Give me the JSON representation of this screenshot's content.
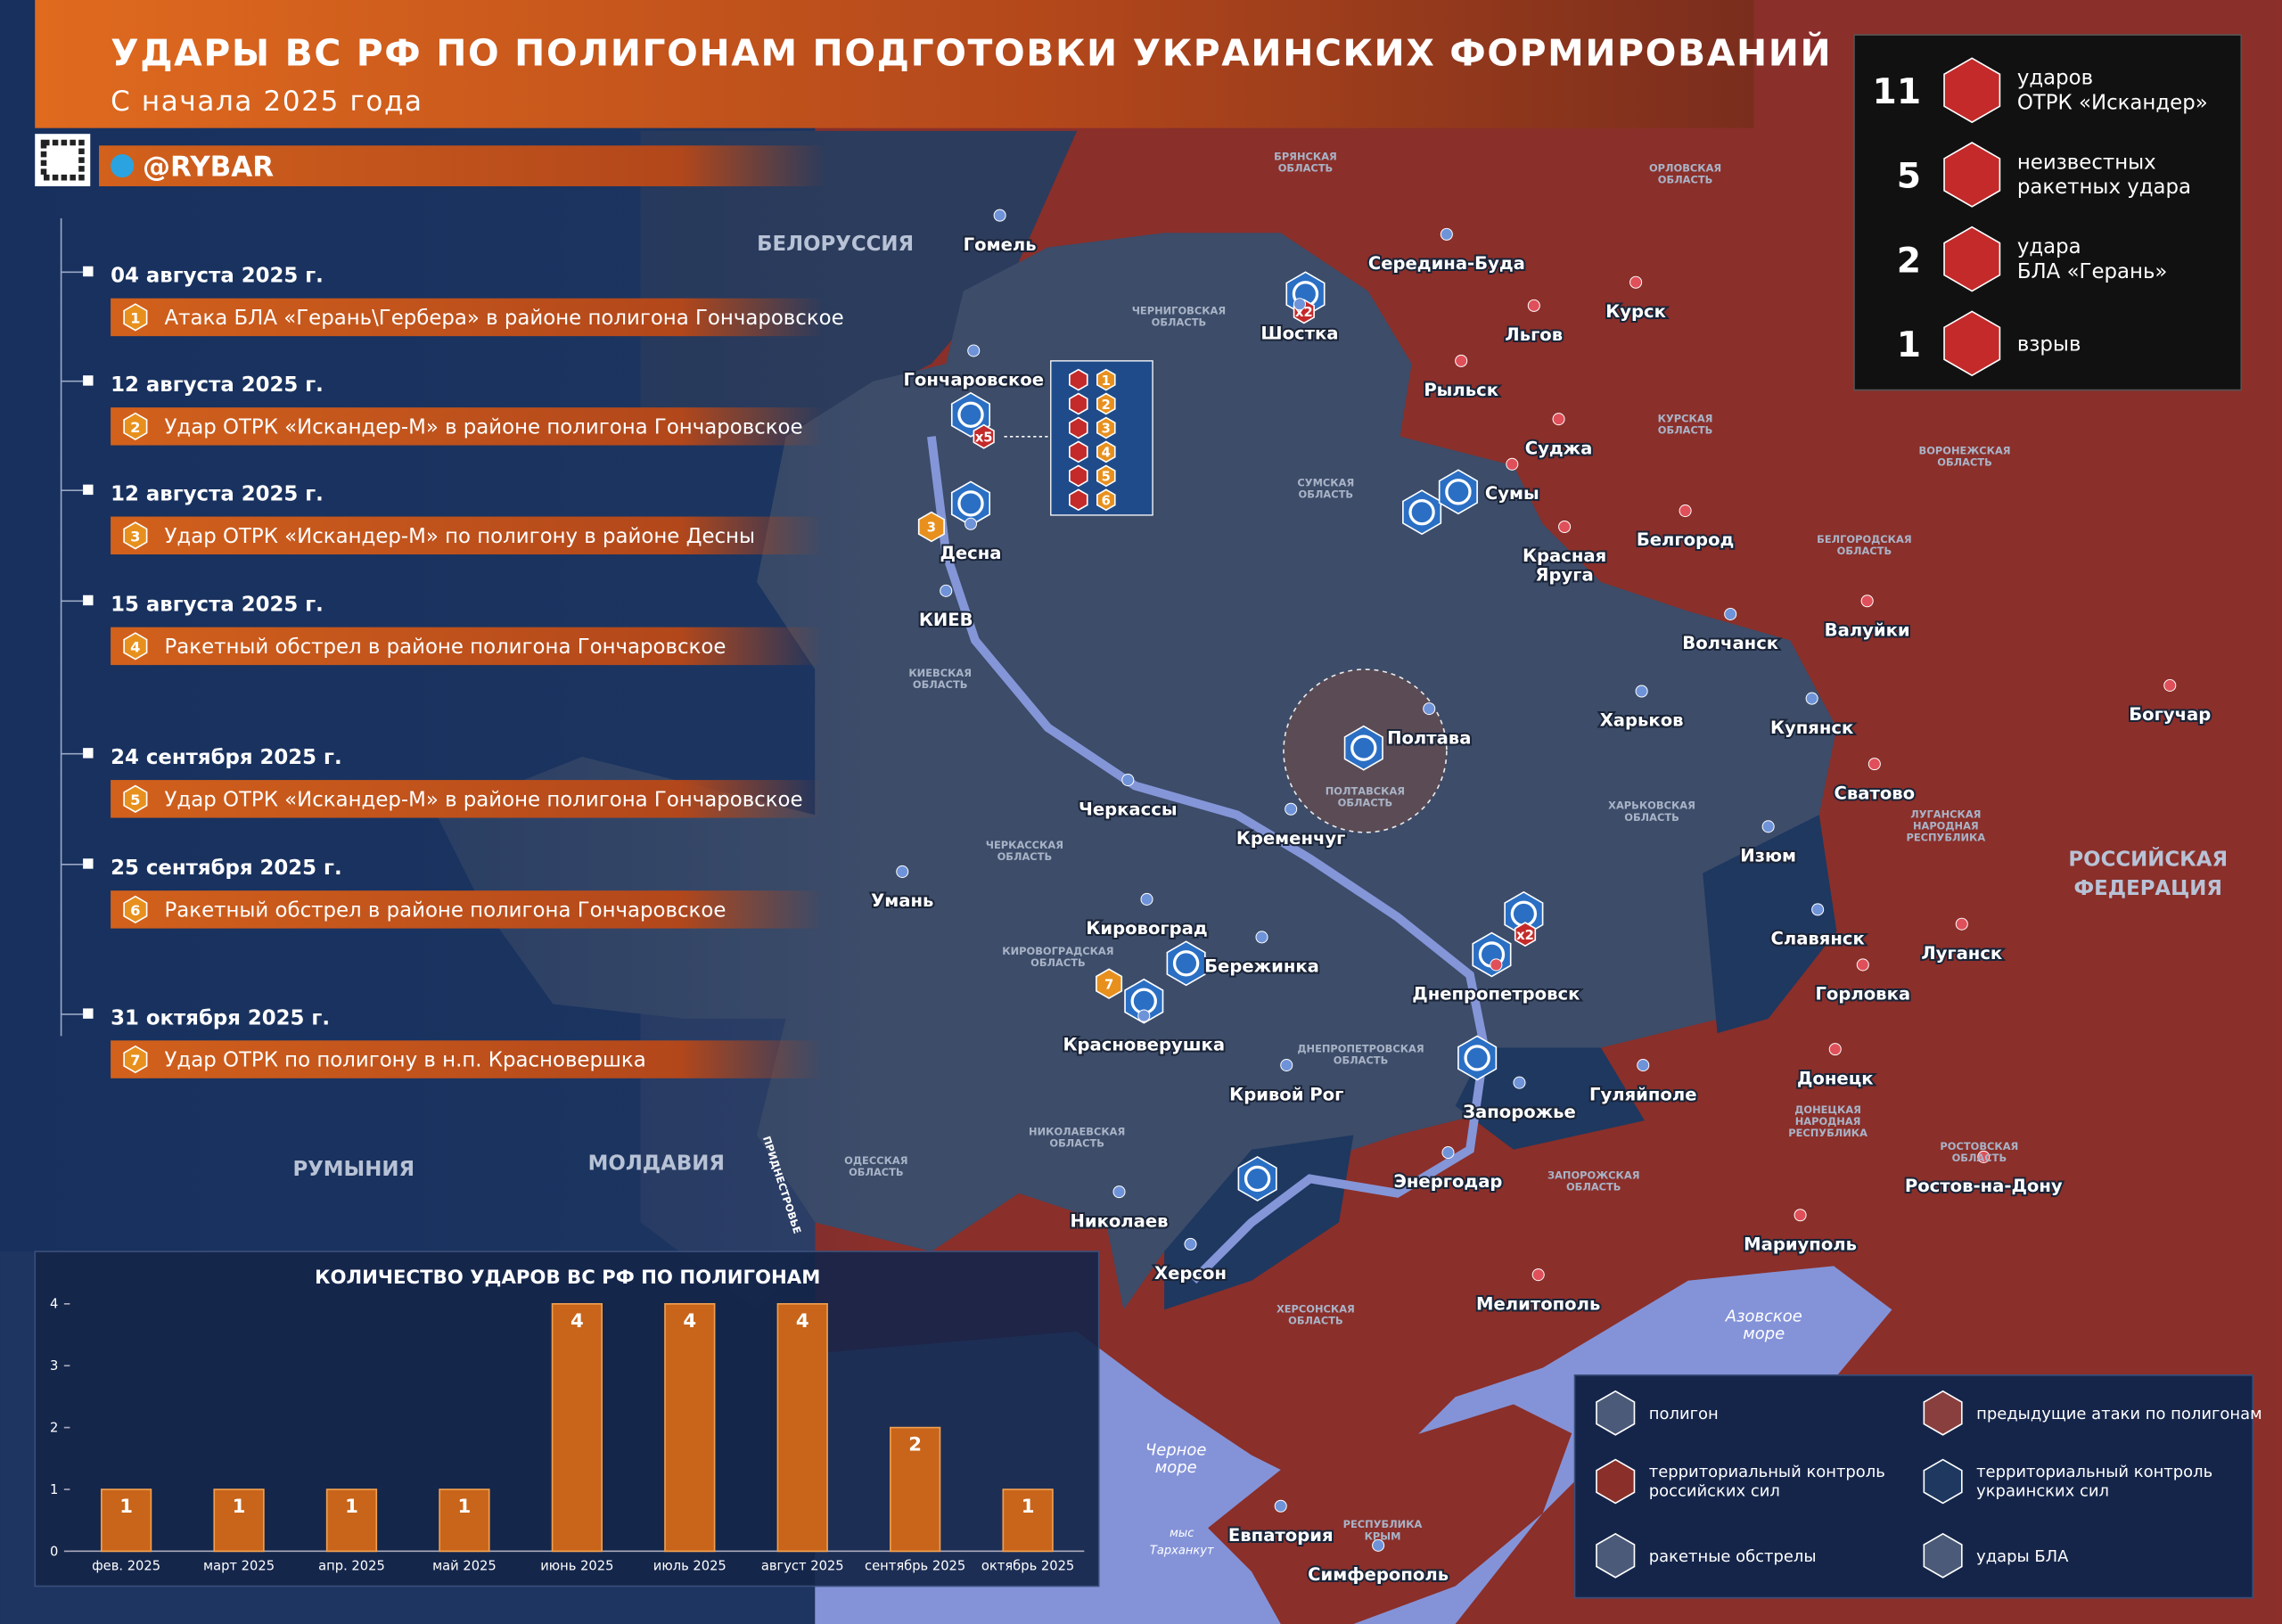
{
  "header": {
    "title": "УДАРЫ ВС РФ ПО ПОЛИГОНАМ ПОДГОТОВКИ УКРАИНСКИХ ФОРМИРОВАНИЙ",
    "subtitle": "С начала 2025 года",
    "handle": "@RYBAR"
  },
  "timeline": [
    {
      "date": "04 августа 2025 г.",
      "num": 1,
      "text": "Атака БЛА «Герань\\Гербера» в районе полигона Гончаровское"
    },
    {
      "date": "12 августа 2025 г.",
      "num": 2,
      "text": "Удар ОТРК «Искандер-М» в районе полигона Гончаровское"
    },
    {
      "date": "12 августа 2025 г.",
      "num": 3,
      "text": "Удар ОТРК «Искандер-М» по полигону в районе Десны"
    },
    {
      "date": "15 августа 2025 г.",
      "num": 4,
      "text": "Ракетный обстрел в районе полигона Гончаровское"
    },
    {
      "date": "24 сентября 2025 г.",
      "num": 5,
      "text": "Удар ОТРК «Искандер-М» в районе полигона Гончаровское"
    },
    {
      "date": "25 сентября 2025 г.",
      "num": 6,
      "text": "Ракетный обстрел в районе полигона Гончаровское"
    },
    {
      "date": "31 октября 2025 г.",
      "num": 7,
      "text": "Удар ОТРК по полигону в н.п. Красновершка"
    }
  ],
  "summary": [
    {
      "count": 11,
      "lines": [
        "ударов",
        "ОТРК «Искандер»"
      ]
    },
    {
      "count": 5,
      "lines": [
        "неизвестных",
        "ракетных удара"
      ]
    },
    {
      "count": 2,
      "lines": [
        "удара",
        "БЛА «Герань»"
      ]
    },
    {
      "count": 1,
      "lines": [
        "взрыв"
      ]
    }
  ],
  "strike_list": [
    1,
    2,
    3,
    4,
    5,
    6
  ],
  "map_badges": [
    "x5",
    "x2",
    "x2",
    3,
    7
  ],
  "cities": [
    [
      "Гомель"
    ],
    [
      "Шостка"
    ],
    [
      "Середина-Буда"
    ],
    [
      "Льгов"
    ],
    [
      "Курск"
    ],
    [
      "Рыльск"
    ],
    [
      "Суджа"
    ],
    [
      "Сумы"
    ],
    [
      "Красная",
      "Яруга"
    ],
    [
      "Белгород"
    ],
    [
      "Волчанск"
    ],
    [
      "Валуйки"
    ],
    [
      "Богучар"
    ],
    [
      "Харьков"
    ],
    [
      "Купянск"
    ],
    [
      "Сватово"
    ],
    [
      "Изюм"
    ],
    [
      "Славянск"
    ],
    [
      "Луганск"
    ],
    [
      "Горловка"
    ],
    [
      "Донецк"
    ],
    [
      "Гуляйполе"
    ],
    [
      "Запорожье"
    ],
    [
      "Днепропетровск"
    ],
    [
      "Энергодар"
    ],
    [
      "Мелитополь"
    ],
    [
      "Мариуполь"
    ],
    [
      "Ростов-на-Дону"
    ],
    [
      "Полтава"
    ],
    [
      "Кременчуг"
    ],
    [
      "Черкассы"
    ],
    [
      "Умань"
    ],
    [
      "Кировоград"
    ],
    [
      "Бережинка"
    ],
    [
      "Красноверушка"
    ],
    [
      "Кривой Рог"
    ],
    [
      "Николаев"
    ],
    [
      "Херсон"
    ],
    [
      "Гончаровское"
    ],
    [
      "Десна"
    ],
    [
      "КИЕВ"
    ],
    [
      "Евпатория"
    ],
    [
      "Симферополь"
    ]
  ],
  "countries": [
    [
      "БЕЛОРУССИЯ"
    ],
    [
      "РУМЫНИЯ"
    ],
    [
      "МОЛДАВИЯ"
    ],
    [
      "РОССИЙСКАЯ",
      "ФЕДЕРАЦИЯ"
    ]
  ],
  "waters": [
    [
      "Азовское",
      "море"
    ],
    [
      "Черное",
      "море"
    ],
    [
      "мыс",
      "Тарханкут"
    ]
  ],
  "regions": [
    [
      "БРЯНСКАЯ",
      "ОБЛАСТЬ"
    ],
    [
      "ОРЛОВСКАЯ",
      "ОБЛАСТЬ"
    ],
    [
      "КУРСКАЯ",
      "ОБЛАСТЬ"
    ],
    [
      "ВОРОНЕЖСКАЯ",
      "ОБЛАСТЬ"
    ],
    [
      "БЕЛГОРОДСКАЯ",
      "ОБЛАСТЬ"
    ],
    [
      "ЧЕРНИГОВСКАЯ",
      "ОБЛАСТЬ"
    ],
    [
      "СУМСКАЯ",
      "ОБЛАСТЬ"
    ],
    [
      "КИЕВСКАЯ",
      "ОБЛАСТЬ"
    ],
    [
      "ПОЛТАВСКАЯ",
      "ОБЛАСТЬ"
    ],
    [
      "ХАРЬКОВСКАЯ",
      "ОБЛАСТЬ"
    ],
    [
      "ЛУГАНСКАЯ",
      "НАРОДНАЯ",
      "РЕСПУБЛИКА"
    ],
    [
      "ЧЕРКАССКАЯ",
      "ОБЛАСТЬ"
    ],
    [
      "КИРОВОГРАДСКАЯ",
      "ОБЛАСТЬ"
    ],
    [
      "ДНЕПРОПЕТРОВСКАЯ",
      "ОБЛАСТЬ"
    ],
    [
      "ДОНЕЦКАЯ",
      "НАРОДНАЯ",
      "РЕСПУБЛИКА"
    ],
    [
      "НИКОЛАЕВСКАЯ",
      "ОБЛАСТЬ"
    ],
    [
      "ОДЕССКАЯ",
      "ОБЛАСТЬ"
    ],
    [
      "ЗАПОРОЖСКАЯ",
      "ОБЛАСТЬ"
    ],
    [
      "ХЕРСОНСКАЯ",
      "ОБЛАСТЬ"
    ],
    [
      "РЕСПУБЛИКА",
      "КРЫМ"
    ],
    [
      "РОСТОВСКАЯ",
      "ОБЛАСТЬ"
    ],
    [
      "ПРИДНЕСТРОВЬЕ"
    ]
  ],
  "legend": [
    [
      "полигон"
    ],
    [
      "предыдущие атаки по полигонам"
    ],
    [
      "территориальный контроль",
      "российских сил"
    ],
    [
      "территориальный контроль",
      "украинских сил"
    ],
    [
      "ракетные обстрелы"
    ],
    [
      "удары БЛА"
    ]
  ],
  "chart_data": {
    "type": "bar",
    "title": "КОЛИЧЕСТВО УДАРОВ ВС РФ ПО ПОЛИГОНАМ",
    "categories": [
      "фев. 2025",
      "март 2025",
      "апр. 2025",
      "май 2025",
      "июнь 2025",
      "июль 2025",
      "август 2025",
      "сентябрь 2025",
      "октябрь 2025"
    ],
    "values": [
      1,
      1,
      1,
      1,
      4,
      4,
      4,
      2,
      1
    ],
    "color": "#c8651a",
    "ylim": [
      0,
      4
    ],
    "yticks": [
      0,
      1,
      2,
      3,
      4
    ]
  }
}
